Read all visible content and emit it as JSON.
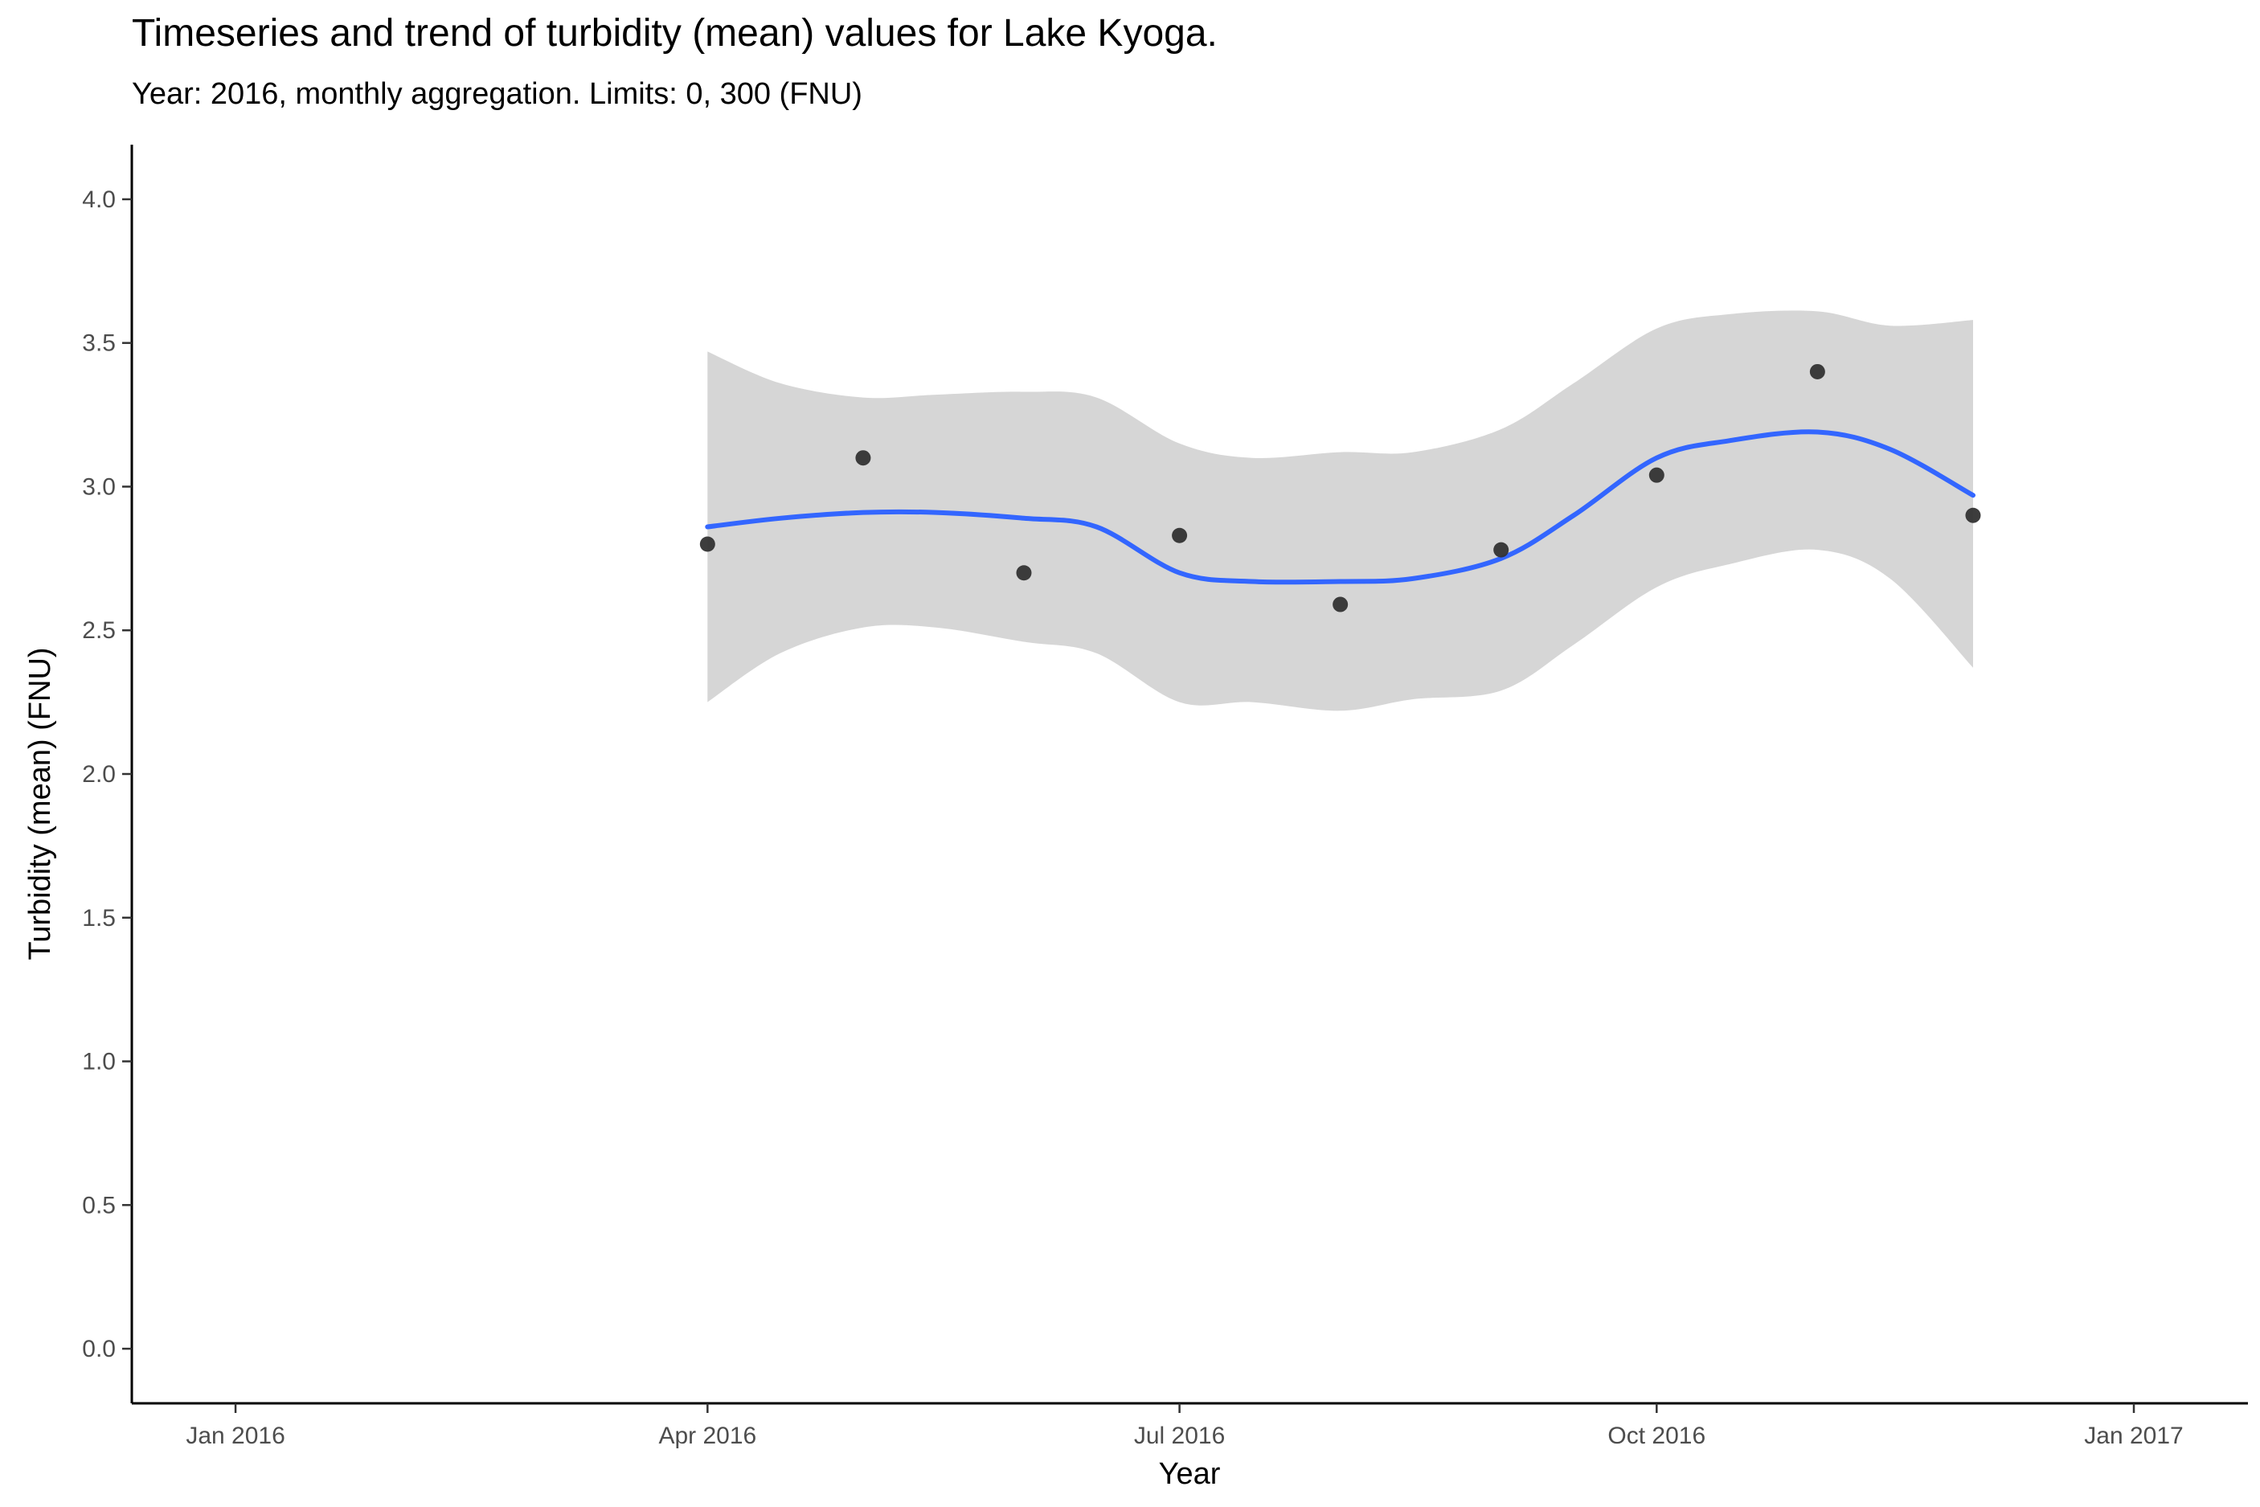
{
  "chart_data": {
    "type": "scatter",
    "title": "Timeseries and trend of turbidity (mean) values for Lake Kyoga.",
    "subtitle": "Year: 2016, monthly aggregation. Limits: 0, 300 (FNU)",
    "xlabel": "Year",
    "ylabel": "Turbidity (mean) (FNU)",
    "x_ticks": [
      {
        "date": "2016-01-01",
        "label": "Jan 2016"
      },
      {
        "date": "2016-04-01",
        "label": "Apr 2016"
      },
      {
        "date": "2016-07-01",
        "label": "Jul 2016"
      },
      {
        "date": "2016-10-01",
        "label": "Oct 2016"
      },
      {
        "date": "2017-01-01",
        "label": "Jan 2017"
      }
    ],
    "y_ticks": [
      "0.0",
      "0.5",
      "1.0",
      "1.5",
      "2.0",
      "2.5",
      "3.0",
      "3.5",
      "4.0"
    ],
    "xlim": [
      "2015-12-12",
      "2017-01-23"
    ],
    "ylim": [
      -0.19,
      4.19
    ],
    "grid": false,
    "legend": "none",
    "points": [
      {
        "x": "2016-04-01",
        "y": 2.8
      },
      {
        "x": "2016-05-01",
        "y": 3.1
      },
      {
        "x": "2016-06-01",
        "y": 2.7
      },
      {
        "x": "2016-07-01",
        "y": 2.83
      },
      {
        "x": "2016-08-01",
        "y": 2.59
      },
      {
        "x": "2016-09-01",
        "y": 2.78
      },
      {
        "x": "2016-10-01",
        "y": 3.04
      },
      {
        "x": "2016-11-01",
        "y": 3.4
      },
      {
        "x": "2016-12-01",
        "y": 2.9
      }
    ],
    "trend": [
      {
        "x": "2016-04-01",
        "y": 2.86,
        "lower": 2.25,
        "upper": 3.47
      },
      {
        "x": "2016-04-15",
        "y": 2.89,
        "lower": 2.42,
        "upper": 3.36
      },
      {
        "x": "2016-05-01",
        "y": 2.91,
        "lower": 2.51,
        "upper": 3.31
      },
      {
        "x": "2016-05-15",
        "y": 2.91,
        "lower": 2.51,
        "upper": 3.32
      },
      {
        "x": "2016-06-01",
        "y": 2.89,
        "lower": 2.46,
        "upper": 3.33
      },
      {
        "x": "2016-06-15",
        "y": 2.86,
        "lower": 2.42,
        "upper": 3.31
      },
      {
        "x": "2016-07-01",
        "y": 2.7,
        "lower": 2.25,
        "upper": 3.15
      },
      {
        "x": "2016-07-15",
        "y": 2.67,
        "lower": 2.25,
        "upper": 3.1
      },
      {
        "x": "2016-08-01",
        "y": 2.67,
        "lower": 2.22,
        "upper": 3.12
      },
      {
        "x": "2016-08-15",
        "y": 2.68,
        "lower": 2.26,
        "upper": 3.12
      },
      {
        "x": "2016-09-01",
        "y": 2.75,
        "lower": 2.29,
        "upper": 3.2
      },
      {
        "x": "2016-09-15",
        "y": 2.9,
        "lower": 2.45,
        "upper": 3.36
      },
      {
        "x": "2016-10-01",
        "y": 3.1,
        "lower": 2.65,
        "upper": 3.55
      },
      {
        "x": "2016-10-15",
        "y": 3.16,
        "lower": 2.73,
        "upper": 3.6
      },
      {
        "x": "2016-11-01",
        "y": 3.19,
        "lower": 2.78,
        "upper": 3.61
      },
      {
        "x": "2016-11-15",
        "y": 3.13,
        "lower": 2.68,
        "upper": 3.56
      },
      {
        "x": "2016-12-01",
        "y": 2.97,
        "lower": 2.37,
        "upper": 3.58
      }
    ],
    "colors": {
      "trend_line": "#3366FF",
      "ribbon": "#d6d6d6",
      "points": "#333333",
      "axis": "#000000",
      "tick_text": "#4d4d4d"
    }
  }
}
